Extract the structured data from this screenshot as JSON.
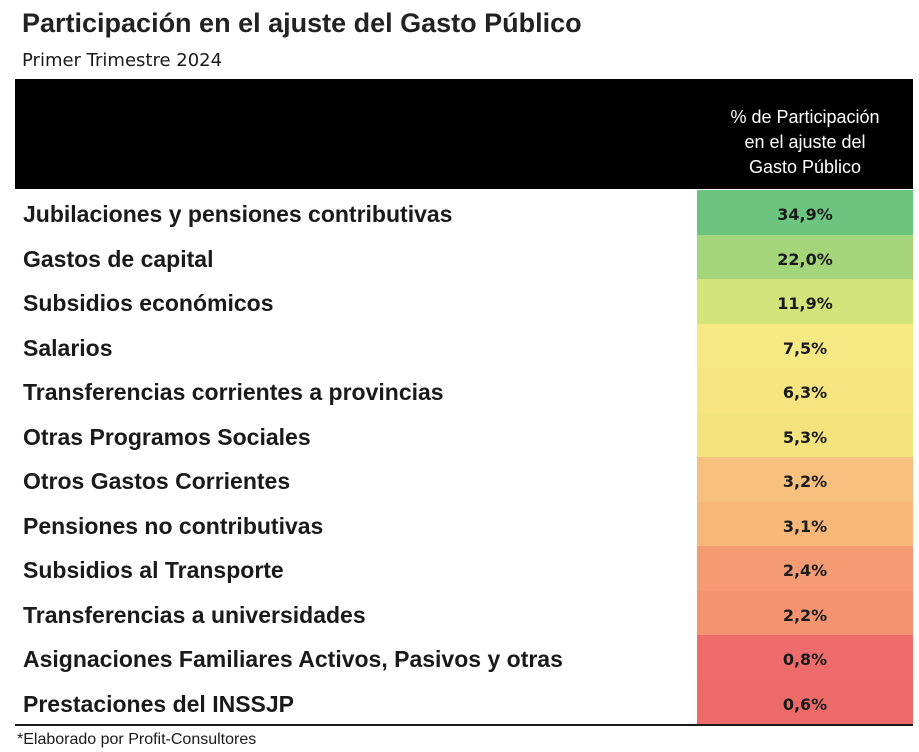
{
  "chart_data": {
    "type": "table",
    "title": "Participación en el ajuste del Gasto Público",
    "subtitle": "Primer Trimestre 2024",
    "column_header": "% de Participación\nen el ajuste del\nGasto Público",
    "categories": [
      "Jubilaciones y pensiones contributivas",
      "Gastos de capital",
      "Subsidios económicos",
      "Salarios",
      "Transferencias corrientes a provincias",
      "Otras Programos Sociales",
      "Otros Gastos Corrientes",
      "Pensiones no contributivas",
      "Subsidios al Transporte",
      "Transferencias a universidades",
      "Asignaciones Familiares Activos, Pasivos y otras",
      "Prestaciones del INSSJP"
    ],
    "values": [
      34.9,
      22.0,
      11.9,
      7.5,
      6.3,
      5.3,
      3.2,
      3.1,
      2.4,
      2.2,
      0.8,
      0.6
    ],
    "value_labels": [
      "34,9%",
      "22,0%",
      "11,9%",
      "7,5%",
      "6,3%",
      "5,3%",
      "3,2%",
      "3,1%",
      "2,4%",
      "2,2%",
      "0,8%",
      "0,6%"
    ],
    "cell_colors": [
      "#6cc57f",
      "#a4d57a",
      "#d2e47a",
      "#f6e984",
      "#f5e47f",
      "#f3e37c",
      "#f7c07e",
      "#f6b779",
      "#f49b74",
      "#f3936f",
      "#ee6d6c",
      "#ec6b69"
    ],
    "footnote": "*Elaborado por Profit-Consultores"
  }
}
